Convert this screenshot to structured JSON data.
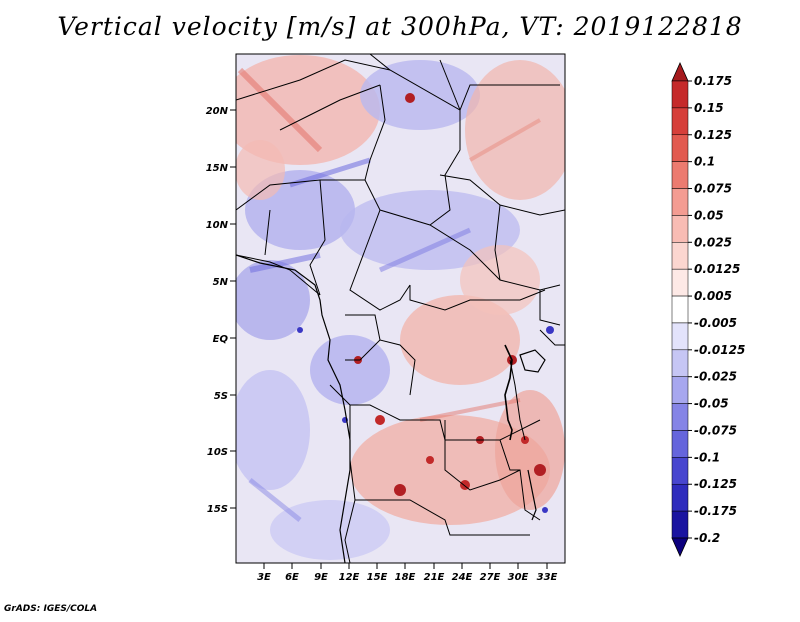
{
  "title": "Vertical velocity [m/s] at 300hPa, VT: 2019122818",
  "credit": "GrADS: IGES/COLA",
  "map": {
    "lat_labels": [
      "20N",
      "15N",
      "10N",
      "5N",
      "EQ",
      "5S",
      "10S",
      "15S"
    ],
    "lon_labels": [
      "3E",
      "6E",
      "9E",
      "12E",
      "15E",
      "18E",
      "21E",
      "24E",
      "27E",
      "30E",
      "33E"
    ]
  },
  "colorbar": {
    "levels": [
      "0.175",
      "0.15",
      "0.125",
      "0.1",
      "0.075",
      "0.05",
      "0.025",
      "0.0125",
      "0.005",
      "-0.005",
      "-0.0125",
      "-0.025",
      "-0.05",
      "-0.075",
      "-0.1",
      "-0.125",
      "-0.175",
      "-0.2"
    ],
    "colors": [
      "#a51a1d",
      "#c52a2a",
      "#d63f3a",
      "#e25a50",
      "#ec7b70",
      "#f39c92",
      "#f8bcb4",
      "#fbd6d0",
      "#fde9e6",
      "#ffffff",
      "#e3e3fb",
      "#c6c6f4",
      "#a7a7ee",
      "#8584e6",
      "#6565dc",
      "#4846cf",
      "#2f2cbd",
      "#1a14a0",
      "#0c007e"
    ]
  }
}
